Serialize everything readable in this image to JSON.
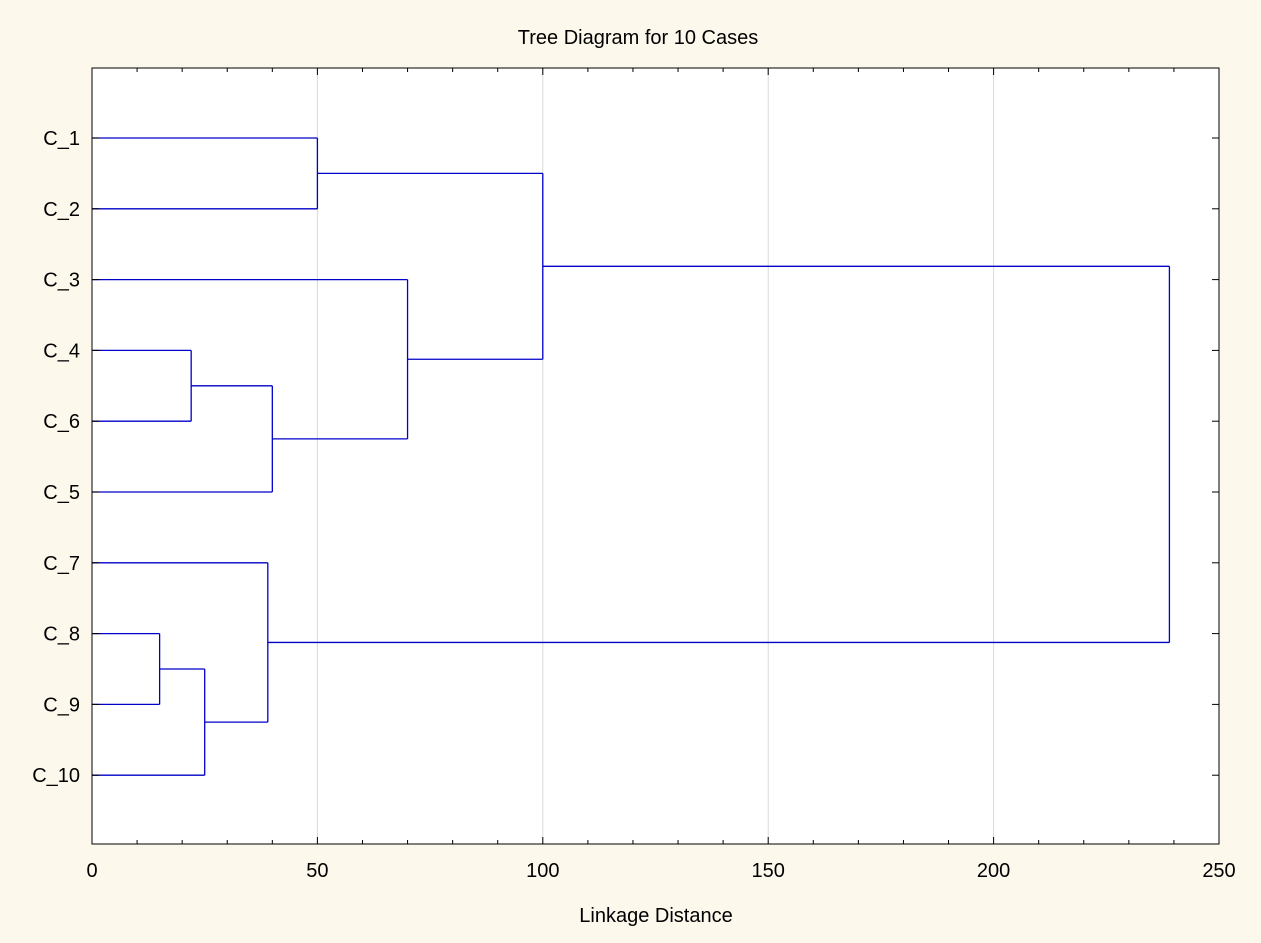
{
  "chart_data": {
    "type": "dendrogram",
    "title": "Tree Diagram for 10 Cases",
    "xlabel": "Linkage Distance",
    "ylabel": "",
    "xlim": [
      0,
      250
    ],
    "x_ticks": [
      0,
      50,
      100,
      150,
      200,
      250
    ],
    "x_tick_labels": [
      "0",
      "50",
      "100",
      "150",
      "200",
      "250"
    ],
    "grid": "vertical",
    "leaves": [
      "C_1",
      "C_2",
      "C_3",
      "C_4",
      "C_6",
      "C_5",
      "C_7",
      "C_8",
      "C_9",
      "C_10"
    ],
    "merges": [
      {
        "id": "m1",
        "left": "C_8",
        "right": "C_9",
        "distance": 15
      },
      {
        "id": "m2",
        "left": "C_4",
        "right": "C_6",
        "distance": 22
      },
      {
        "id": "m3",
        "left": "m1",
        "right": "C_10",
        "distance": 25
      },
      {
        "id": "m4",
        "left": "C_7",
        "right": "m3",
        "distance": 39
      },
      {
        "id": "m5",
        "left": "m2",
        "right": "C_5",
        "distance": 40
      },
      {
        "id": "m6",
        "left": "C_1",
        "right": "C_2",
        "distance": 50
      },
      {
        "id": "m7",
        "left": "C_3",
        "right": "m5",
        "distance": 70
      },
      {
        "id": "m8",
        "left": "m6",
        "right": "m7",
        "distance": 100
      },
      {
        "id": "m9",
        "left": "m8",
        "right": "m4",
        "distance": 239
      }
    ],
    "colors": {
      "line": "#0000c8",
      "grid": "#d9d9d9",
      "background": "#fdf8ec",
      "plot_area": "#ffffff"
    }
  }
}
